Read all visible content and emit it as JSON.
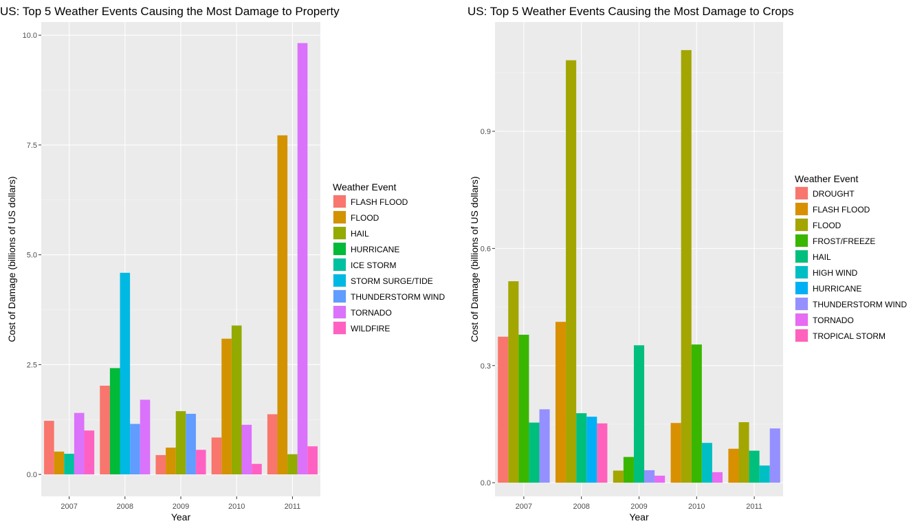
{
  "charts": [
    {
      "id": "property",
      "chart_data": {
        "type": "bar",
        "title": "US: Top 5 Weather Events Causing the Most Damage to Property",
        "xlabel": "Year",
        "ylabel": "Cost of Damage (billions of US dollars)",
        "ylim": [
          -0.5,
          10.3
        ],
        "yticks": [
          0.0,
          2.5,
          5.0,
          7.5,
          10.0
        ],
        "ytick_labels": [
          "0.0",
          "2.5",
          "5.0",
          "7.5",
          "10.0"
        ],
        "categories": [
          "2007",
          "2008",
          "2009",
          "2010",
          "2011"
        ],
        "grid": true,
        "legend_position": "right",
        "legend_title": "Weather Event",
        "series": [
          {
            "name": "FLASH FLOOD",
            "color": "#F8766D",
            "values": [
              1.22,
              2.02,
              0.44,
              0.84,
              1.37
            ]
          },
          {
            "name": "FLOOD",
            "color": "#D39200",
            "values": [
              0.52,
              null,
              0.61,
              3.09,
              7.72
            ]
          },
          {
            "name": "HAIL",
            "color": "#93AA00",
            "values": [
              null,
              null,
              1.44,
              3.39,
              0.46
            ]
          },
          {
            "name": "HURRICANE",
            "color": "#00BA38",
            "values": [
              null,
              2.42,
              null,
              null,
              null
            ]
          },
          {
            "name": "ICE STORM",
            "color": "#00C19F",
            "values": [
              0.47,
              null,
              null,
              null,
              null
            ]
          },
          {
            "name": "STORM SURGE/TIDE",
            "color": "#00B9E3",
            "values": [
              null,
              4.59,
              null,
              null,
              null
            ]
          },
          {
            "name": "THUNDERSTORM WIND",
            "color": "#619CFF",
            "values": [
              null,
              1.15,
              1.38,
              null,
              null
            ]
          },
          {
            "name": "TORNADO",
            "color": "#DB72FB",
            "values": [
              1.4,
              1.7,
              null,
              1.13,
              9.82
            ]
          },
          {
            "name": "WILDFIRE",
            "color": "#FF61C3",
            "values": [
              1.0,
              null,
              0.56,
              0.24,
              0.64
            ]
          }
        ]
      }
    },
    {
      "id": "crops",
      "chart_data": {
        "type": "bar",
        "title": "US: Top 5 Weather Events Causing the Most Damage to Crops",
        "xlabel": "Year",
        "ylabel": "Cost of Damage (billions of US dollars)",
        "ylim": [
          -0.035,
          1.18
        ],
        "yticks": [
          0.0,
          0.3,
          0.6,
          0.9
        ],
        "ytick_labels": [
          "0.0",
          "0.3",
          "0.6",
          "0.9"
        ],
        "categories": [
          "2007",
          "2008",
          "2009",
          "2010",
          "2011"
        ],
        "grid": true,
        "legend_position": "right",
        "legend_title": "Weather Event",
        "series": [
          {
            "name": "DROUGHT",
            "color": "#F8766D",
            "values": [
              0.374,
              null,
              null,
              null,
              null
            ]
          },
          {
            "name": "FLASH FLOOD",
            "color": "#D89000",
            "values": [
              null,
              0.412,
              null,
              0.153,
              0.087
            ]
          },
          {
            "name": "FLOOD",
            "color": "#A3A500",
            "values": [
              0.516,
              1.082,
              0.031,
              1.108,
              0.155
            ]
          },
          {
            "name": "FROST/FREEZE",
            "color": "#39B600",
            "values": [
              0.379,
              null,
              0.066,
              0.354,
              null
            ]
          },
          {
            "name": "HAIL",
            "color": "#00BF7D",
            "values": [
              0.154,
              0.178,
              0.352,
              null,
              0.082
            ]
          },
          {
            "name": "HIGH WIND",
            "color": "#00BFC4",
            "values": [
              null,
              null,
              null,
              0.102,
              0.044
            ]
          },
          {
            "name": "HURRICANE",
            "color": "#00B0F6",
            "values": [
              null,
              0.169,
              null,
              null,
              null
            ]
          },
          {
            "name": "THUNDERSTORM WIND",
            "color": "#9590FF",
            "values": [
              0.188,
              null,
              0.032,
              null,
              0.139
            ]
          },
          {
            "name": "TORNADO",
            "color": "#E76BF3",
            "values": [
              null,
              null,
              0.018,
              0.027,
              null
            ]
          },
          {
            "name": "TROPICAL STORM",
            "color": "#FF62BC",
            "values": [
              null,
              0.152,
              null,
              null,
              null
            ]
          }
        ]
      }
    }
  ]
}
